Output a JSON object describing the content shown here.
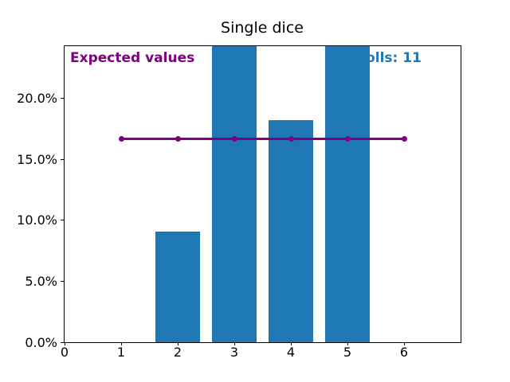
{
  "chart_data": {
    "type": "bar",
    "title": "Single dice",
    "x_axis": {
      "lim": [
        0,
        7
      ],
      "ticks": [
        {
          "x": 0,
          "label": "0"
        },
        {
          "x": 1,
          "label": "1"
        },
        {
          "x": 2,
          "label": "2"
        },
        {
          "x": 3,
          "label": "3"
        },
        {
          "x": 4,
          "label": "4"
        },
        {
          "x": 5,
          "label": "5"
        },
        {
          "x": 6,
          "label": "6"
        }
      ]
    },
    "y_axis": {
      "lim_pct": [
        0,
        24.3
      ],
      "grid": false,
      "ticks": [
        {
          "pct": 0,
          "label": "0.0%"
        },
        {
          "pct": 5,
          "label": "5.0%"
        },
        {
          "pct": 10,
          "label": "10.0%"
        },
        {
          "pct": 15,
          "label": "15.0%"
        },
        {
          "pct": 20,
          "label": "20.0%"
        }
      ]
    },
    "bars": {
      "color": "#1f77b4",
      "width_units": 0.8,
      "points": [
        {
          "x": 1,
          "pct": 0
        },
        {
          "x": 2,
          "pct": 9.1
        },
        {
          "x": 3,
          "pct": 24.3,
          "clipped_at_top": true
        },
        {
          "x": 4,
          "pct": 18.2
        },
        {
          "x": 5,
          "pct": 24.3,
          "clipped_at_top": true
        },
        {
          "x": 6,
          "pct": 0
        }
      ]
    },
    "expected_line": {
      "color": "#800080",
      "pct": 16.7,
      "x_points": [
        1,
        2,
        3,
        4,
        5,
        6
      ],
      "marker": "dot"
    },
    "annotations": [
      {
        "id": "expected-values-label",
        "text": "Expected values",
        "color": "#800080",
        "bold": true,
        "position": "top-left"
      },
      {
        "id": "rolls-count-label",
        "text": "Rolls: 11",
        "color": "#1f77b4",
        "bold": true,
        "position": "top-right",
        "partially_hidden_behind_bar": true
      }
    ]
  }
}
